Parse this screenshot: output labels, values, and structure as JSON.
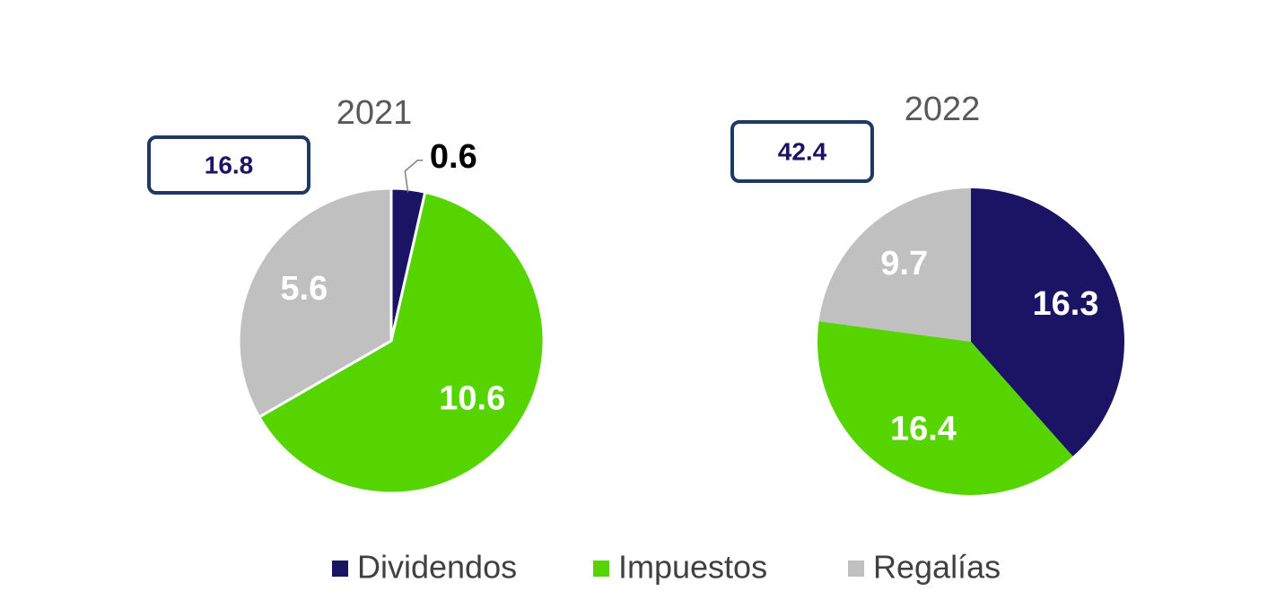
{
  "chart_data": [
    {
      "type": "pie",
      "title": "2021",
      "total": 16.8,
      "categories": [
        "Dividendos",
        "Impuestos",
        "Regalías"
      ],
      "values": [
        0.6,
        10.6,
        5.6
      ],
      "colors": [
        "#1b1464",
        "#55d400",
        "#c0c0c0"
      ]
    },
    {
      "type": "pie",
      "title": "2022",
      "total": 42.4,
      "categories": [
        "Dividendos",
        "Impuestos",
        "Regalías"
      ],
      "values": [
        16.3,
        16.4,
        9.7
      ],
      "colors": [
        "#1b1464",
        "#55d400",
        "#c0c0c0"
      ]
    }
  ]
}
